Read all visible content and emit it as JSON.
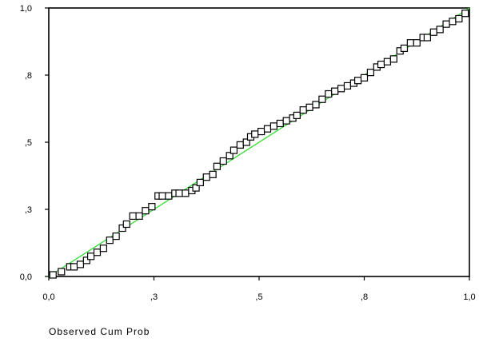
{
  "chart_data": {
    "type": "scatter",
    "title": "",
    "xlabel": "Observed Cum Prob",
    "ylabel": "",
    "xlim": [
      0,
      1
    ],
    "ylim": [
      0,
      1
    ],
    "x_ticks": [
      {
        "value": 0.0,
        "label": "0,0"
      },
      {
        "value": 0.25,
        "label": ",3"
      },
      {
        "value": 0.5,
        "label": ",5"
      },
      {
        "value": 0.75,
        "label": ",8"
      },
      {
        "value": 1.0,
        "label": "1,0"
      }
    ],
    "y_ticks": [
      {
        "value": 0.0,
        "label": "0,0"
      },
      {
        "value": 0.25,
        "label": ",3"
      },
      {
        "value": 0.5,
        "label": ",5"
      },
      {
        "value": 0.75,
        "label": ",8"
      },
      {
        "value": 1.0,
        "label": "1,0"
      }
    ],
    "grid": false,
    "reference_line": {
      "from": [
        0,
        0
      ],
      "to": [
        1,
        1
      ],
      "color": "#33dd33"
    },
    "marker": {
      "shape": "square",
      "filled": false,
      "color": "#000000"
    },
    "series": [
      {
        "points": [
          [
            0.01,
            0.006
          ],
          [
            0.03,
            0.018
          ],
          [
            0.05,
            0.036
          ],
          [
            0.06,
            0.036
          ],
          [
            0.075,
            0.045
          ],
          [
            0.09,
            0.06
          ],
          [
            0.1,
            0.075
          ],
          [
            0.115,
            0.09
          ],
          [
            0.13,
            0.105
          ],
          [
            0.145,
            0.135
          ],
          [
            0.16,
            0.15
          ],
          [
            0.175,
            0.18
          ],
          [
            0.185,
            0.195
          ],
          [
            0.2,
            0.225
          ],
          [
            0.215,
            0.225
          ],
          [
            0.23,
            0.245
          ],
          [
            0.245,
            0.26
          ],
          [
            0.26,
            0.3
          ],
          [
            0.27,
            0.3
          ],
          [
            0.285,
            0.3
          ],
          [
            0.3,
            0.31
          ],
          [
            0.31,
            0.31
          ],
          [
            0.325,
            0.31
          ],
          [
            0.34,
            0.32
          ],
          [
            0.35,
            0.33
          ],
          [
            0.36,
            0.35
          ],
          [
            0.375,
            0.37
          ],
          [
            0.39,
            0.38
          ],
          [
            0.4,
            0.41
          ],
          [
            0.415,
            0.43
          ],
          [
            0.43,
            0.45
          ],
          [
            0.44,
            0.47
          ],
          [
            0.455,
            0.49
          ],
          [
            0.47,
            0.5
          ],
          [
            0.48,
            0.52
          ],
          [
            0.49,
            0.53
          ],
          [
            0.505,
            0.54
          ],
          [
            0.52,
            0.55
          ],
          [
            0.535,
            0.56
          ],
          [
            0.55,
            0.57
          ],
          [
            0.565,
            0.58
          ],
          [
            0.58,
            0.59
          ],
          [
            0.59,
            0.6
          ],
          [
            0.605,
            0.62
          ],
          [
            0.62,
            0.63
          ],
          [
            0.635,
            0.64
          ],
          [
            0.65,
            0.66
          ],
          [
            0.665,
            0.68
          ],
          [
            0.68,
            0.69
          ],
          [
            0.695,
            0.7
          ],
          [
            0.71,
            0.71
          ],
          [
            0.725,
            0.72
          ],
          [
            0.735,
            0.73
          ],
          [
            0.75,
            0.74
          ],
          [
            0.765,
            0.76
          ],
          [
            0.78,
            0.78
          ],
          [
            0.79,
            0.79
          ],
          [
            0.805,
            0.8
          ],
          [
            0.82,
            0.81
          ],
          [
            0.835,
            0.84
          ],
          [
            0.845,
            0.85
          ],
          [
            0.86,
            0.87
          ],
          [
            0.875,
            0.87
          ],
          [
            0.89,
            0.89
          ],
          [
            0.9,
            0.89
          ],
          [
            0.915,
            0.91
          ],
          [
            0.93,
            0.92
          ],
          [
            0.945,
            0.94
          ],
          [
            0.96,
            0.95
          ],
          [
            0.975,
            0.96
          ],
          [
            0.99,
            0.98
          ]
        ]
      }
    ]
  }
}
